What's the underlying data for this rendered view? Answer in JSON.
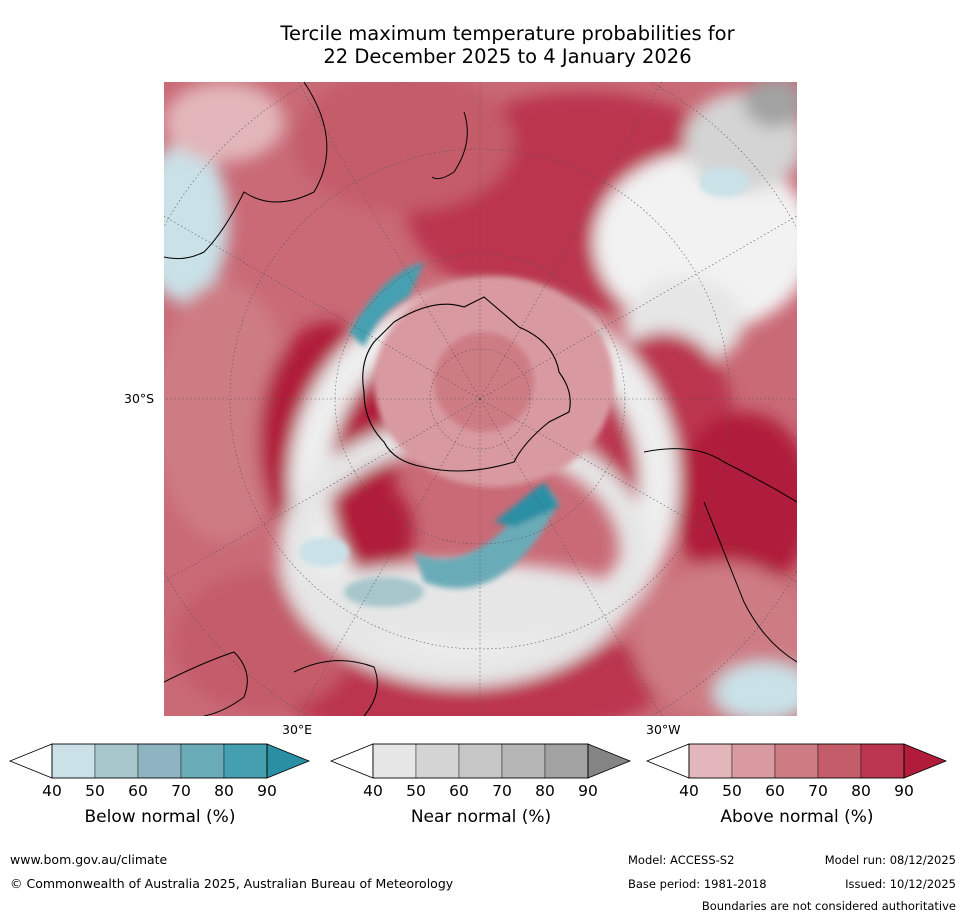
{
  "title": {
    "line1": "Tercile maximum temperature probabilities for",
    "line2": "22 December 2025 to 4 January 2026"
  },
  "map": {
    "projection": "south-polar-stereographic",
    "lat_label": "30°S",
    "lon_labels": [
      "30°E",
      "30°W"
    ]
  },
  "colorbars": [
    {
      "label": "Below normal (%)",
      "ticks": [
        "40",
        "50",
        "60",
        "70",
        "80",
        "90"
      ],
      "colors": [
        "#ffffff",
        "#c9e1e7",
        "#a7c6cc",
        "#8db4c0",
        "#6aabb8",
        "#44a0b1",
        "#2b8fa4"
      ]
    },
    {
      "label": "Near normal (%)",
      "ticks": [
        "40",
        "50",
        "60",
        "70",
        "80",
        "90"
      ],
      "colors": [
        "#ffffff",
        "#e6e6e6",
        "#d4d4d4",
        "#c6c6c6",
        "#b6b6b6",
        "#a2a2a2",
        "#848484"
      ]
    },
    {
      "label": "Above normal (%)",
      "ticks": [
        "40",
        "50",
        "60",
        "70",
        "80",
        "90"
      ],
      "colors": [
        "#ffffff",
        "#e2b6ba",
        "#d89aa0",
        "#ce7c84",
        "#c45c6a",
        "#bb3550",
        "#b01c3a"
      ]
    }
  ],
  "footer": {
    "website": "www.bom.gov.au/climate",
    "copyright": "© Commonwealth of Australia 2025, Australian Bureau of Meteorology",
    "model": "Model: ACCESS-S2",
    "base_period": "Base period: 1981-2018",
    "model_run": "Model run: 08/12/2025",
    "issued": "Issued: 10/12/2025",
    "disclaimer": "Boundaries are not considered authoritative"
  }
}
